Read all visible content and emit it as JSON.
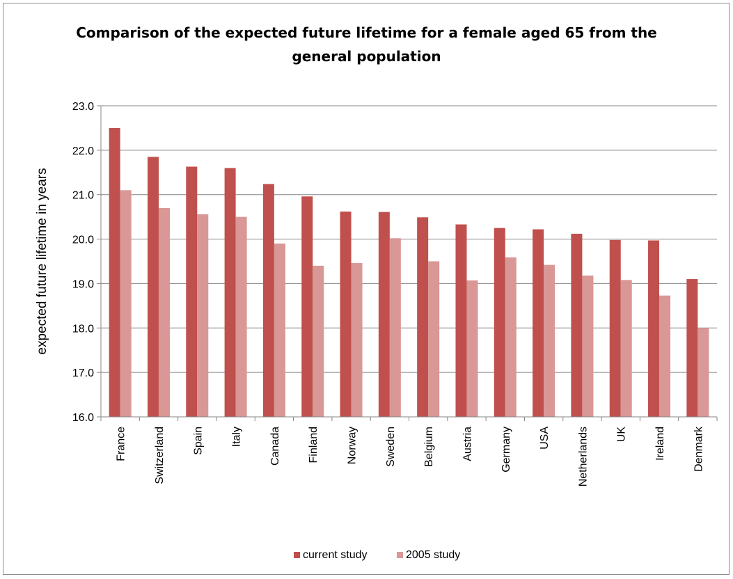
{
  "chart_data": {
    "type": "bar",
    "title_lines": [
      "Comparison of the expected future lifetime for a female aged 65 from the",
      "general population"
    ],
    "xlabel": "",
    "ylabel": "expected future lifetime in years",
    "ylim": [
      16.0,
      23.0
    ],
    "yticks": [
      "16.0",
      "17.0",
      "18.0",
      "19.0",
      "20.0",
      "21.0",
      "22.0",
      "23.0"
    ],
    "grid": true,
    "legend_placement": "bottom",
    "categories": [
      "France",
      "Switzerland",
      "Spain",
      "Italy",
      "Canada",
      "Finland",
      "Norway",
      "Sweden",
      "Belgium",
      "Austria",
      "Germany",
      "USA",
      "Netherlands",
      "UK",
      "Ireland",
      "Denmark"
    ],
    "series": [
      {
        "name": "current study",
        "color": "#c0504d",
        "values": [
          22.5,
          21.85,
          21.63,
          21.6,
          21.24,
          20.96,
          20.62,
          20.61,
          20.49,
          20.33,
          20.25,
          20.22,
          20.12,
          19.98,
          19.97,
          19.1
        ]
      },
      {
        "name": "2005 study",
        "color": "#d99795",
        "values": [
          21.1,
          20.7,
          20.56,
          20.5,
          19.9,
          19.4,
          19.46,
          20.02,
          19.5,
          19.07,
          19.59,
          19.42,
          19.18,
          19.08,
          18.73,
          18.0
        ]
      }
    ]
  }
}
